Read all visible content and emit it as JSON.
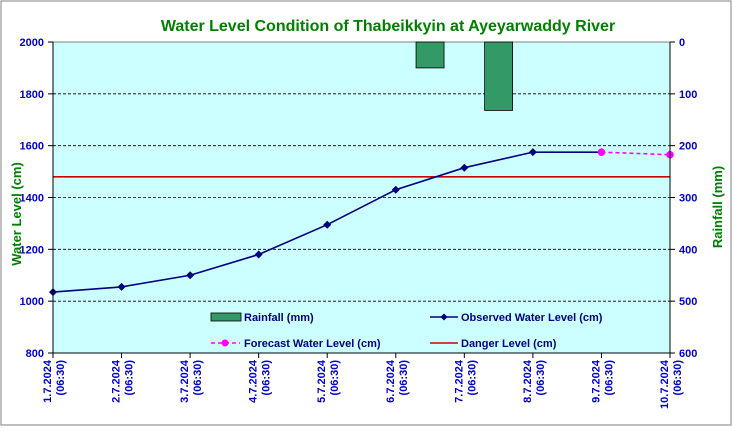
{
  "chart_data": {
    "type": "bar+line",
    "title": "Water Level Condition of Thabeikkyin at Ayeyarwaddy River",
    "ylabel_left": "Water Level (cm)",
    "ylabel_right": "Rainfall (mm)",
    "ylim_left": [
      800,
      2000
    ],
    "yticks_left": [
      "800",
      "1000",
      "1200",
      "1400",
      "1600",
      "1800",
      "2000"
    ],
    "ylim_right_inverted": [
      0,
      600
    ],
    "yticks_right": [
      "0",
      "100",
      "200",
      "300",
      "400",
      "500",
      "600"
    ],
    "categories": [
      "1.7.2024 (06:30)",
      "2.7.2024 (06:30)",
      "3.7.2024 (06:30)",
      "4.7.2024 (06:30)",
      "5.7.2024 (06:30)",
      "6.7.2024 (06:30)",
      "7.7.2024 (06:30)",
      "8.7.2024 (06:30)",
      "9.7.2024 (06:30)",
      "10.7.2024 (06:30)"
    ],
    "category_dates": [
      "1.7.2024",
      "2.7.2024",
      "3.7.2024",
      "4.7.2024",
      "5.7.2024",
      "6.7.2024",
      "7.7.2024",
      "8.7.2024",
      "9.7.2024",
      "10.7.2024"
    ],
    "category_time": "(06:30)",
    "series": [
      {
        "name": "Rainfall (mm)",
        "kind": "bar",
        "axis": "right",
        "color": "#339966",
        "values": [
          null,
          null,
          null,
          null,
          null,
          null,
          50,
          132,
          null,
          null
        ]
      },
      {
        "name": "Observed Water Level (cm)",
        "kind": "line",
        "axis": "left",
        "color": "#000080",
        "values": [
          1035,
          1055,
          1100,
          1180,
          1295,
          1430,
          1515,
          1575,
          1575,
          null
        ]
      },
      {
        "name": "Forecast Water Level (cm)",
        "kind": "line-dashed",
        "axis": "left",
        "color": "#ff00ff",
        "values": [
          null,
          null,
          null,
          null,
          null,
          null,
          null,
          null,
          1575,
          1565
        ]
      },
      {
        "name": "Danger Level (cm)",
        "kind": "hline",
        "axis": "left",
        "color": "#cc0000",
        "value": 1480
      }
    ],
    "grid": "horizontal-dashed",
    "plot_background": "#ccffff",
    "legend_placement": "bottom-center"
  }
}
